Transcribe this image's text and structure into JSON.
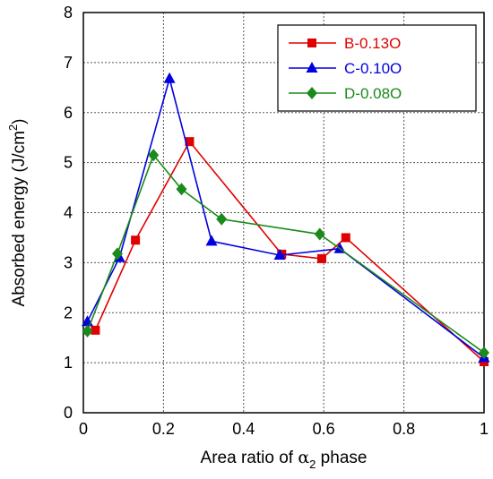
{
  "chart_data": {
    "type": "line",
    "xlabel": {
      "prefix": "Area ratio of ",
      "symbol": "α",
      "sub": "2",
      "suffix": " phase"
    },
    "ylabel": {
      "text": "Absorbed energy (J/cm",
      "sup": "2",
      "close": ")"
    },
    "xlim": [
      0,
      1
    ],
    "ylim": [
      0,
      8
    ],
    "x_ticks": [
      "0",
      "0.2",
      "0.4",
      "0.6",
      "0.8",
      "1"
    ],
    "y_ticks": [
      "0",
      "1",
      "2",
      "3",
      "4",
      "5",
      "6",
      "7",
      "8"
    ],
    "grid": true,
    "legend_position": "top-right",
    "series": [
      {
        "name": "B-0.13O",
        "color": "#e00000",
        "marker": "square",
        "x": [
          0.03,
          0.13,
          0.265,
          0.495,
          0.595,
          0.655,
          1.0
        ],
        "y": [
          1.65,
          3.45,
          5.42,
          3.17,
          3.08,
          3.5,
          1.02
        ]
      },
      {
        "name": "C-0.10O",
        "color": "#0000e0",
        "marker": "triangle",
        "x": [
          0.01,
          0.09,
          0.215,
          0.32,
          0.49,
          0.64,
          1.0
        ],
        "y": [
          1.82,
          3.1,
          6.68,
          3.43,
          3.15,
          3.28,
          1.1
        ]
      },
      {
        "name": "D-0.08O",
        "color": "#1a8a1a",
        "marker": "diamond",
        "x": [
          0.01,
          0.085,
          0.175,
          0.245,
          0.345,
          0.59,
          1.0
        ],
        "y": [
          1.63,
          3.18,
          5.15,
          4.47,
          3.87,
          3.57,
          1.2
        ]
      }
    ]
  }
}
